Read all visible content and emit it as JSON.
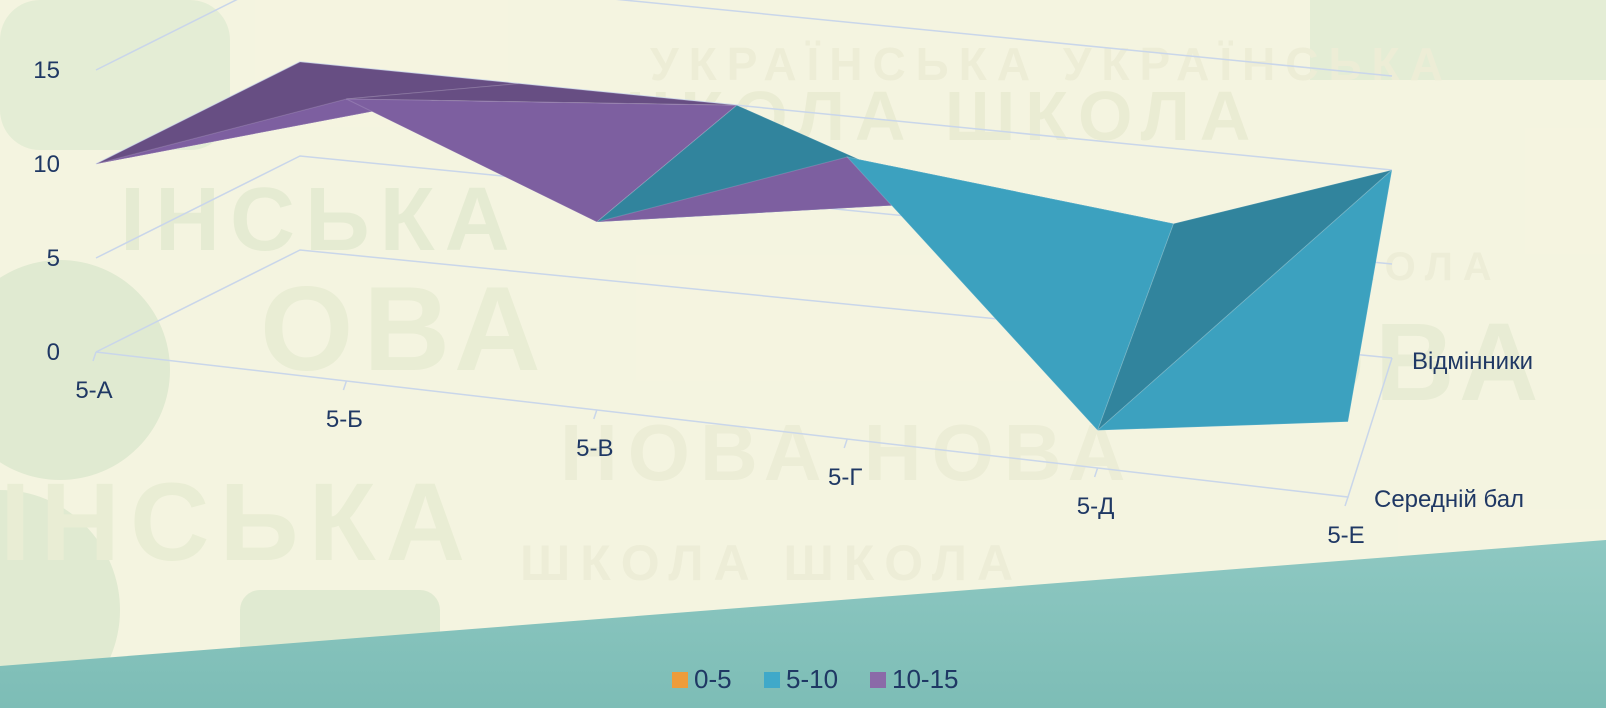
{
  "chart_data": {
    "type": "surface",
    "title": "",
    "x_categories": [
      "5-А",
      "5-Б",
      "5-В",
      "5-Г",
      "5-Д",
      "5-Е"
    ],
    "depth_categories": [
      "Середній бал",
      "Відмінники"
    ],
    "z_ticks": [
      "0",
      "5",
      "10",
      "15"
    ],
    "zlim": [
      0,
      15
    ],
    "band_legend": [
      {
        "label": "0-5",
        "color": "#ed9c3b"
      },
      {
        "label": "5-10",
        "color": "#3fa9c9"
      },
      {
        "label": "10-15",
        "color": "#8b6aa8"
      }
    ],
    "series": [
      {
        "values": [
          10,
          15,
          10,
          15,
          2,
          4
        ]
      },
      {
        "values": [
          10,
          10,
          10,
          6,
          6,
          10
        ]
      }
    ]
  }
}
